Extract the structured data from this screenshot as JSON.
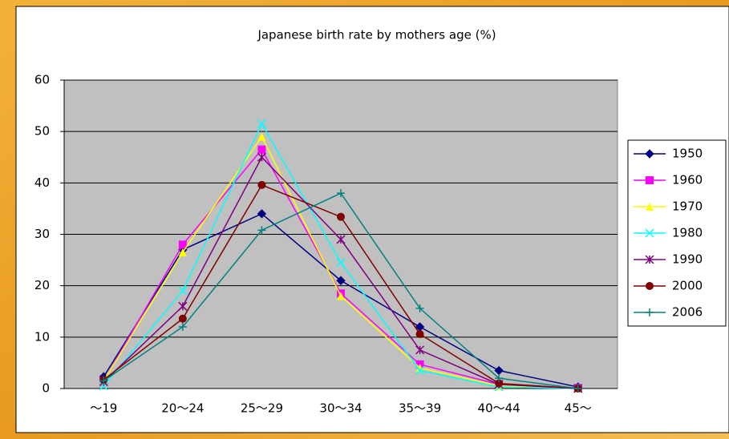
{
  "chart_data": {
    "type": "line",
    "title": "Japanese birth rate by mothers age (%)",
    "categories": [
      "～19",
      "20～24",
      "25～29",
      "30～34",
      "35～39",
      "40～44",
      "45～"
    ],
    "series": [
      {
        "name": "1950",
        "color": "#000080",
        "marker": "diamond",
        "values": [
          2.3,
          27,
          34,
          21,
          12,
          3.5,
          0.3
        ]
      },
      {
        "name": "1960",
        "color": "#ff00ff",
        "marker": "square",
        "values": [
          1.5,
          28,
          46.5,
          18.5,
          4.7,
          0.8,
          0.1
        ]
      },
      {
        "name": "1970",
        "color": "#ffff00",
        "marker": "triangle",
        "values": [
          1.5,
          26.5,
          49,
          18,
          4,
          0.5,
          0
        ]
      },
      {
        "name": "1980",
        "color": "#00ffff",
        "marker": "x",
        "values": [
          0.5,
          19,
          51.5,
          24.5,
          3.5,
          0.3,
          0
        ]
      },
      {
        "name": "1990",
        "color": "#800080",
        "marker": "star",
        "values": [
          1.3,
          16,
          45,
          29,
          7.5,
          0.8,
          0
        ]
      },
      {
        "name": "2000",
        "color": "#800000",
        "marker": "circle",
        "values": [
          1.7,
          13.6,
          39.6,
          33.4,
          10.6,
          1.0,
          0
        ]
      },
      {
        "name": "2006",
        "color": "#008080",
        "marker": "plus",
        "values": [
          1.5,
          12,
          30.8,
          38,
          15.6,
          2,
          0
        ]
      }
    ],
    "ylim": [
      0,
      60
    ],
    "yticks": [
      0,
      10,
      20,
      30,
      40,
      50,
      60
    ],
    "grid": true,
    "legend": "right"
  }
}
